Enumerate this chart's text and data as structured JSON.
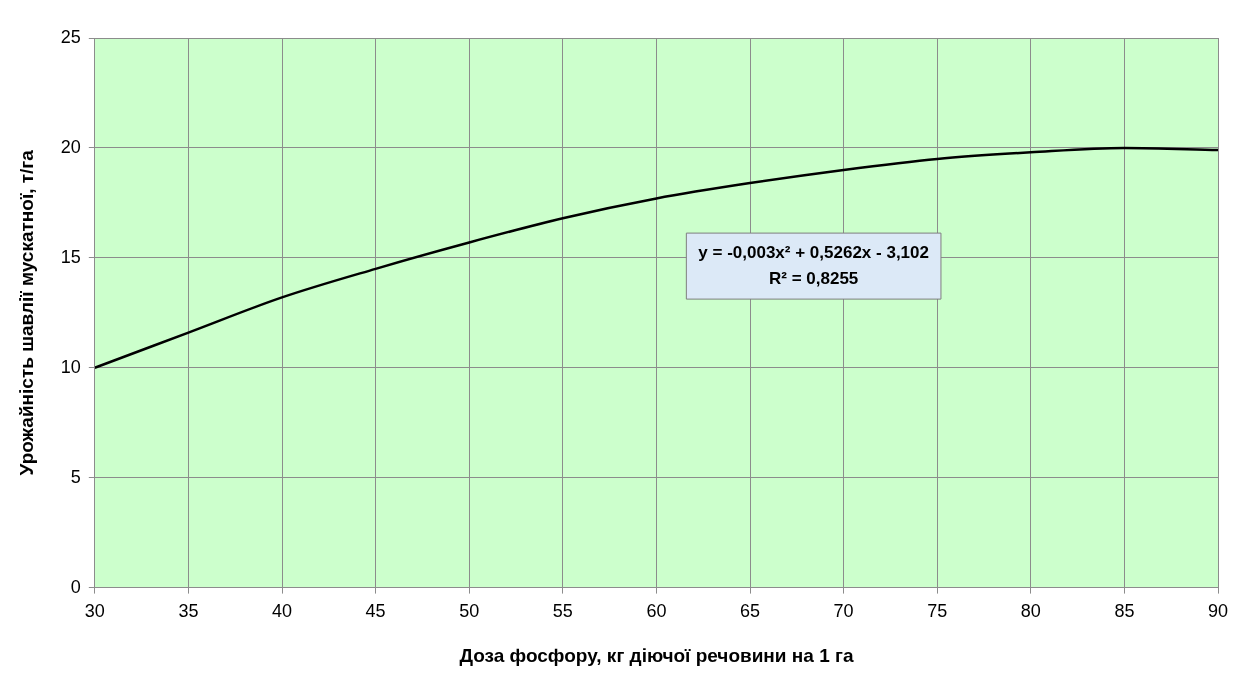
{
  "chart_data": {
    "type": "line",
    "xlabel": "Доза фосфору, кг діючої речовини на 1 га",
    "ylabel": "Урожайність шавлії мускатної, т/га",
    "x": [
      30,
      35,
      40,
      45,
      50,
      55,
      60,
      65,
      70,
      75,
      80,
      85,
      90
    ],
    "series": [
      {
        "color": "#000000",
        "values": [
          10.0,
          11.6,
          13.2,
          14.5,
          15.7,
          16.8,
          17.7,
          18.4,
          19.0,
          19.5,
          19.8,
          20.0,
          19.9
        ]
      }
    ],
    "xlim": [
      30,
      90
    ],
    "xticks": [
      30,
      35,
      40,
      45,
      50,
      55,
      60,
      65,
      70,
      75,
      80,
      85,
      90
    ],
    "ylim": [
      0,
      25
    ],
    "yticks": [
      0,
      5,
      10,
      15,
      20,
      25
    ],
    "annotations": [
      "y = -0,003x² + 0,5262x - 3,102",
      "R² = 0,8255"
    ],
    "grid": true,
    "legend": false,
    "marker": "none",
    "line_style": "solid"
  }
}
